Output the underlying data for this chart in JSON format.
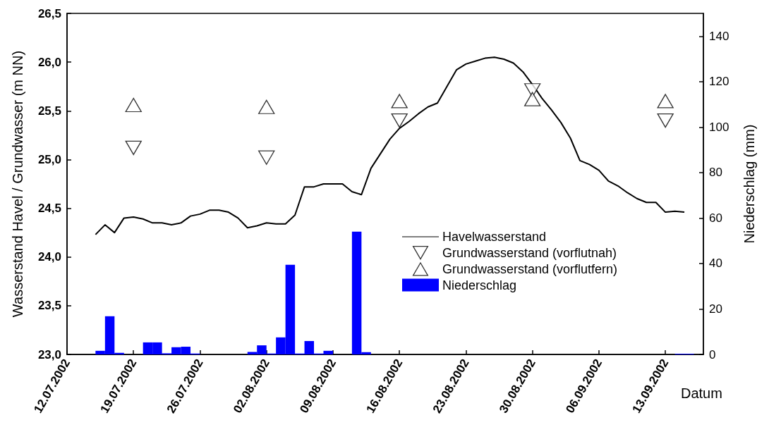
{
  "chart_data": {
    "type": "line",
    "xlabel": "Datum",
    "ylabel": "Wasserstand Havel / Grundwasser (m NN)",
    "y2label": "Niederschlag (mm)",
    "xlim": [
      "2002-07-12",
      "2002-09-17"
    ],
    "xticks": [
      {
        "value": "2002-07-12",
        "label": "12.07.2002"
      },
      {
        "value": "2002-07-19",
        "label": "19.07.2002"
      },
      {
        "value": "2002-07-26",
        "label": "26.07.2002"
      },
      {
        "value": "2002-08-02",
        "label": "02.08.2002"
      },
      {
        "value": "2002-08-09",
        "label": "09.08.2002"
      },
      {
        "value": "2002-08-16",
        "label": "16.08.2002"
      },
      {
        "value": "2002-08-23",
        "label": "23.08.2002"
      },
      {
        "value": "2002-08-30",
        "label": "30.08.2002"
      },
      {
        "value": "2002-09-06",
        "label": "06.09.2002"
      },
      {
        "value": "2002-09-13",
        "label": "13.09.2002"
      }
    ],
    "ylim": [
      23,
      26.5
    ],
    "yticks": [
      {
        "value": 23,
        "label": "23,0"
      },
      {
        "value": 23.5,
        "label": "23,5"
      },
      {
        "value": 24,
        "label": "24,0"
      },
      {
        "value": 24.5,
        "label": "24,5"
      },
      {
        "value": 25,
        "label": "25,0"
      },
      {
        "value": 25.5,
        "label": "25,5"
      },
      {
        "value": 26,
        "label": "26,0"
      },
      {
        "value": 26.5,
        "label": "26,5"
      }
    ],
    "y2lim": [
      0,
      150
    ],
    "y2ticks": [
      0,
      20,
      40,
      60,
      80,
      100,
      120,
      140
    ],
    "grid": false,
    "legend": "right",
    "series": [
      {
        "name": "Havelwasserstand",
        "color": "#000000",
        "marker": "none",
        "line_style": "solid",
        "x": [
          "2002-07-15",
          "2002-07-16",
          "2002-07-17",
          "2002-07-18",
          "2002-07-19",
          "2002-07-20",
          "2002-07-21",
          "2002-07-22",
          "2002-07-23",
          "2002-07-24",
          "2002-07-25",
          "2002-07-26",
          "2002-07-27",
          "2002-07-28",
          "2002-07-29",
          "2002-07-30",
          "2002-07-31",
          "2002-08-01",
          "2002-08-02",
          "2002-08-03",
          "2002-08-04",
          "2002-08-05",
          "2002-08-06",
          "2002-08-07",
          "2002-08-08",
          "2002-08-09",
          "2002-08-10",
          "2002-08-11",
          "2002-08-12",
          "2002-08-13",
          "2002-08-14",
          "2002-08-15",
          "2002-08-16",
          "2002-08-17",
          "2002-08-18",
          "2002-08-19",
          "2002-08-20",
          "2002-08-21",
          "2002-08-22",
          "2002-08-23",
          "2002-08-24",
          "2002-08-25",
          "2002-08-26",
          "2002-08-27",
          "2002-08-28",
          "2002-08-29",
          "2002-08-30",
          "2002-08-31",
          "2002-09-01",
          "2002-09-02",
          "2002-09-03",
          "2002-09-04",
          "2002-09-05",
          "2002-09-06",
          "2002-09-07",
          "2002-09-08",
          "2002-09-09",
          "2002-09-10",
          "2002-09-11",
          "2002-09-12",
          "2002-09-13",
          "2002-09-14",
          "2002-09-15"
        ],
        "values": [
          24.23,
          24.33,
          24.25,
          24.4,
          24.41,
          24.39,
          24.35,
          24.35,
          24.33,
          24.35,
          24.42,
          24.44,
          24.48,
          24.48,
          24.46,
          24.4,
          24.3,
          24.32,
          24.35,
          24.34,
          24.34,
          24.43,
          24.72,
          24.72,
          24.75,
          24.75,
          24.75,
          24.67,
          24.64,
          24.91,
          25.06,
          25.21,
          25.32,
          25.39,
          25.47,
          25.54,
          25.58,
          25.75,
          25.92,
          25.98,
          26.01,
          26.04,
          26.05,
          26.03,
          25.99,
          25.9,
          25.77,
          25.63,
          25.51,
          25.38,
          25.22,
          24.99,
          24.95,
          24.89,
          24.78,
          24.73,
          24.66,
          24.6,
          24.56,
          24.56,
          24.46,
          24.47,
          24.46
        ]
      },
      {
        "name": "Grundwasserstand (vorflutnah)",
        "type": "scatter",
        "color": "#000000",
        "marker": "triangle-down",
        "x": [
          "2002-07-19",
          "2002-08-02",
          "2002-08-16",
          "2002-08-30",
          "2002-09-13"
        ],
        "values": [
          25.12,
          25.02,
          25.4,
          25.71,
          25.4
        ]
      },
      {
        "name": "Grundwasserstand (vorflutfern)",
        "type": "scatter",
        "color": "#000000",
        "marker": "triangle",
        "x": [
          "2002-07-19",
          "2002-08-02",
          "2002-08-16",
          "2002-08-30",
          "2002-09-13"
        ],
        "values": [
          25.56,
          25.54,
          25.6,
          25.62,
          25.6
        ]
      },
      {
        "name": "Niederschlag",
        "type": "bar",
        "axis": "y2",
        "color": "#0000ff",
        "x": [
          "2002-07-15T12:00",
          "2002-07-16T12:00",
          "2002-07-17T12:00",
          "2002-07-20T12:00",
          "2002-07-21T12:00",
          "2002-07-22T12:00",
          "2002-07-23T12:00",
          "2002-07-24T12:00",
          "2002-07-25T12:00",
          "2002-07-31T12:00",
          "2002-08-01T12:00",
          "2002-08-02T12:00",
          "2002-08-03T12:00",
          "2002-08-04T12:00",
          "2002-08-05T12:00",
          "2002-08-06T12:00",
          "2002-08-07T12:00",
          "2002-08-08T12:00",
          "2002-08-11T12:00",
          "2002-08-12T12:00",
          "2002-09-14T12:00",
          "2002-09-15T12:00"
        ],
        "values": [
          1.6,
          16.8,
          0.7,
          5.3,
          5.3,
          0.5,
          3.2,
          3.4,
          0.4,
          1.1,
          4.0,
          0.4,
          7.5,
          39.4,
          0.4,
          5.9,
          0.4,
          1.6,
          54,
          1.0,
          0.3,
          0.3
        ]
      }
    ]
  }
}
